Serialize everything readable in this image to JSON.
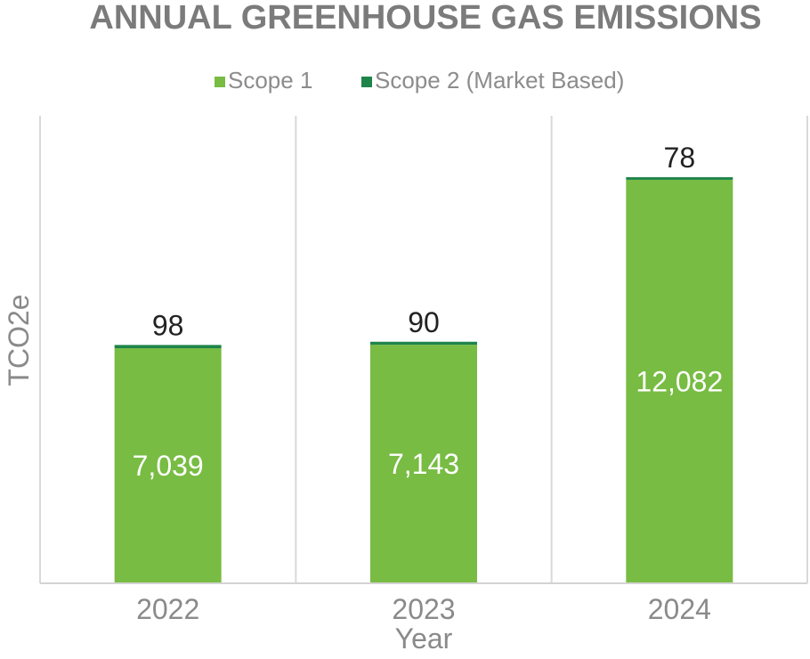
{
  "chart_data": {
    "type": "bar",
    "stacked": true,
    "title": "ANNUAL GREENHOUSE GAS EMISSIONS",
    "xlabel": "Year",
    "ylabel": "TCO2e",
    "categories": [
      "2022",
      "2023",
      "2024"
    ],
    "series": [
      {
        "name": "Scope 1",
        "color": "#78bc43",
        "values": [
          7039,
          7143,
          12082
        ],
        "labels": [
          "7,039",
          "7,143",
          "12,082"
        ]
      },
      {
        "name": "Scope 2 (Market Based)",
        "color": "#1e8449",
        "values": [
          98,
          90,
          78
        ],
        "labels": [
          "98",
          "90",
          "78"
        ]
      }
    ],
    "ylim": [
      0,
      14000
    ],
    "grid": "vertical-category-separators",
    "legend": "top-center"
  }
}
